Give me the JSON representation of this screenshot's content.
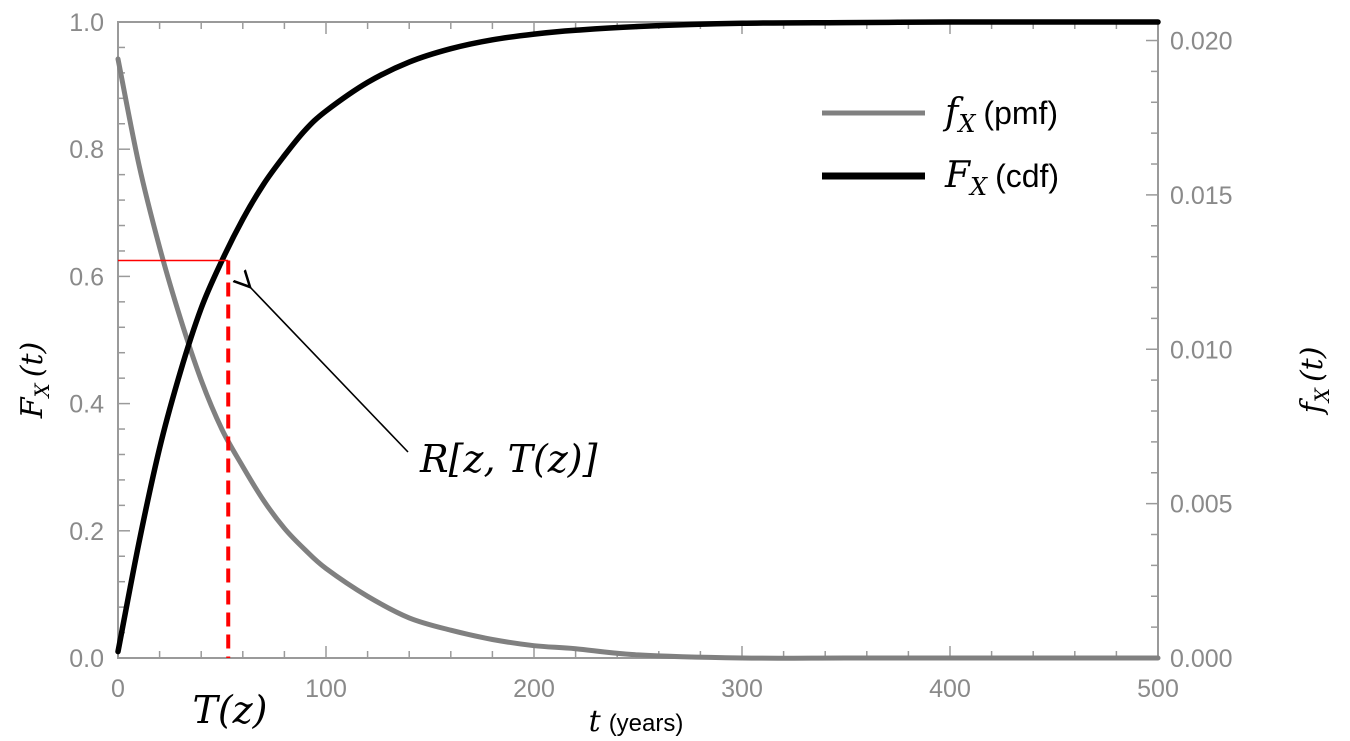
{
  "chart_data": {
    "type": "line",
    "x": [
      0,
      10,
      20,
      30,
      40,
      50,
      60,
      70,
      80,
      90,
      100,
      120,
      140,
      160,
      180,
      200,
      220,
      250,
      300,
      350,
      400,
      450,
      500
    ],
    "xlabel": {
      "var": "t",
      "unit": "(years)"
    },
    "xlim": [
      0,
      500
    ],
    "x_ticks": [
      "0",
      "100",
      "200",
      "300",
      "400",
      "500"
    ],
    "left_axis": {
      "label": {
        "main": "F",
        "sub": "X",
        "arg": "(t)"
      },
      "ylim": [
        0,
        1
      ],
      "ticks": [
        "0.0",
        "0.2",
        "0.4",
        "0.6",
        "0.8",
        "1.0"
      ]
    },
    "right_axis": {
      "label": {
        "main": "f",
        "sub": "X",
        "arg": "(t)"
      },
      "ylim": [
        0,
        0.0206
      ],
      "ticks": [
        "0.000",
        "0.005",
        "0.010",
        "0.015",
        "0.020"
      ]
    },
    "series": [
      {
        "name": "pmf",
        "symbol": "f",
        "sub": "X",
        "axis": "right",
        "color": "#808080",
        "values": [
          0.0194,
          0.016,
          0.0133,
          0.011,
          0.009,
          0.0074,
          0.0062,
          0.0051,
          0.0042,
          0.0035,
          0.0029,
          0.002,
          0.0013,
          0.0009,
          0.0006,
          0.0004,
          0.0003,
          0.0001,
          0.0,
          0.0,
          0.0,
          0.0,
          0.0
        ]
      },
      {
        "name": "cdf",
        "symbol": "F",
        "sub": "X",
        "axis": "left",
        "color": "#000000",
        "values": [
          0.01,
          0.18,
          0.33,
          0.45,
          0.55,
          0.625,
          0.69,
          0.745,
          0.79,
          0.83,
          0.86,
          0.905,
          0.937,
          0.958,
          0.972,
          0.981,
          0.987,
          0.993,
          0.998,
          0.999,
          1.0,
          1.0,
          1.0
        ]
      }
    ],
    "legend": {
      "position": "top-right"
    },
    "annotations": {
      "threshold_x": 53,
      "threshold_y": 0.625,
      "x_marker": "T(z)",
      "arrow_label": "R[z, T(z)]",
      "marker_color": "#ff0000"
    }
  }
}
